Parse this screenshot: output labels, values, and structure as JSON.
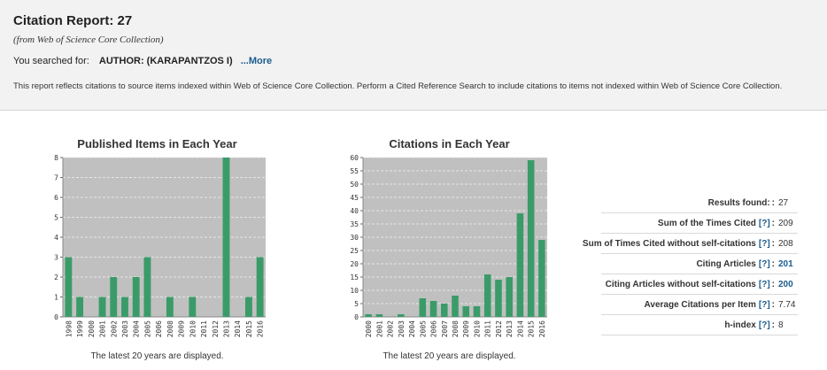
{
  "report": {
    "title": "Citation Report: 27",
    "subtitle": "(from Web of Science Core Collection)",
    "searched_label": "You searched for:",
    "query": "AUTHOR: (KARAPANTZOS I)",
    "more_link": "...More",
    "note": "This report reflects citations to source items indexed within Web of Science Core Collection. Perform a Cited Reference Search to include citations to items not indexed within Web of Science Core Collection."
  },
  "charts": {
    "published": {
      "title": "Published Items in Each Year",
      "footnote": "The latest 20 years are displayed."
    },
    "citations": {
      "title": "Citations in Each Year",
      "footnote": "The latest 20 years are displayed."
    }
  },
  "chart_data": [
    {
      "type": "bar",
      "title": "Published Items in Each Year",
      "categories": [
        "1998",
        "1999",
        "2000",
        "2001",
        "2002",
        "2003",
        "2004",
        "2005",
        "2006",
        "2008",
        "2009",
        "2010",
        "2011",
        "2012",
        "2013",
        "2014",
        "2015",
        "2016"
      ],
      "values": [
        3,
        1,
        0,
        1,
        2,
        1,
        2,
        3,
        0,
        1,
        0,
        1,
        0,
        0,
        8,
        0,
        1,
        3
      ],
      "ylim": [
        0,
        8
      ],
      "yticks": [
        0,
        1,
        2,
        3,
        4,
        5,
        6,
        7,
        8
      ],
      "color": "#3a9b69",
      "grid": true
    },
    {
      "type": "bar",
      "title": "Citations in Each Year",
      "categories": [
        "2000",
        "2001",
        "2002",
        "2003",
        "2004",
        "2005",
        "2006",
        "2007",
        "2008",
        "2009",
        "2010",
        "2011",
        "2012",
        "2013",
        "2014",
        "2015",
        "2016"
      ],
      "values": [
        1,
        1,
        0,
        1,
        0,
        7,
        6,
        5,
        8,
        4,
        4,
        16,
        14,
        15,
        39,
        59,
        29
      ],
      "ylim": [
        0,
        60
      ],
      "yticks": [
        0,
        5,
        10,
        15,
        20,
        25,
        30,
        35,
        40,
        45,
        50,
        55,
        60
      ],
      "color": "#3a9b69",
      "grid": true
    }
  ],
  "stats": [
    {
      "label": "Results found:",
      "help": "",
      "value": "27",
      "link": false
    },
    {
      "label": "Sum of the Times Cited",
      "help": "[?]",
      "value": "209",
      "link": false
    },
    {
      "label": "Sum of Times Cited without self-citations",
      "help": "[?]",
      "value": "208",
      "link": false
    },
    {
      "label": "Citing Articles",
      "help": "[?]",
      "value": "201",
      "link": true
    },
    {
      "label": "Citing Articles without self-citations",
      "help": "[?]",
      "value": "200",
      "link": true
    },
    {
      "label": "Average Citations per Item",
      "help": "[?]",
      "value": "7.74",
      "link": false
    },
    {
      "label": "h-index",
      "help": "[?]",
      "value": "8",
      "link": false
    }
  ]
}
